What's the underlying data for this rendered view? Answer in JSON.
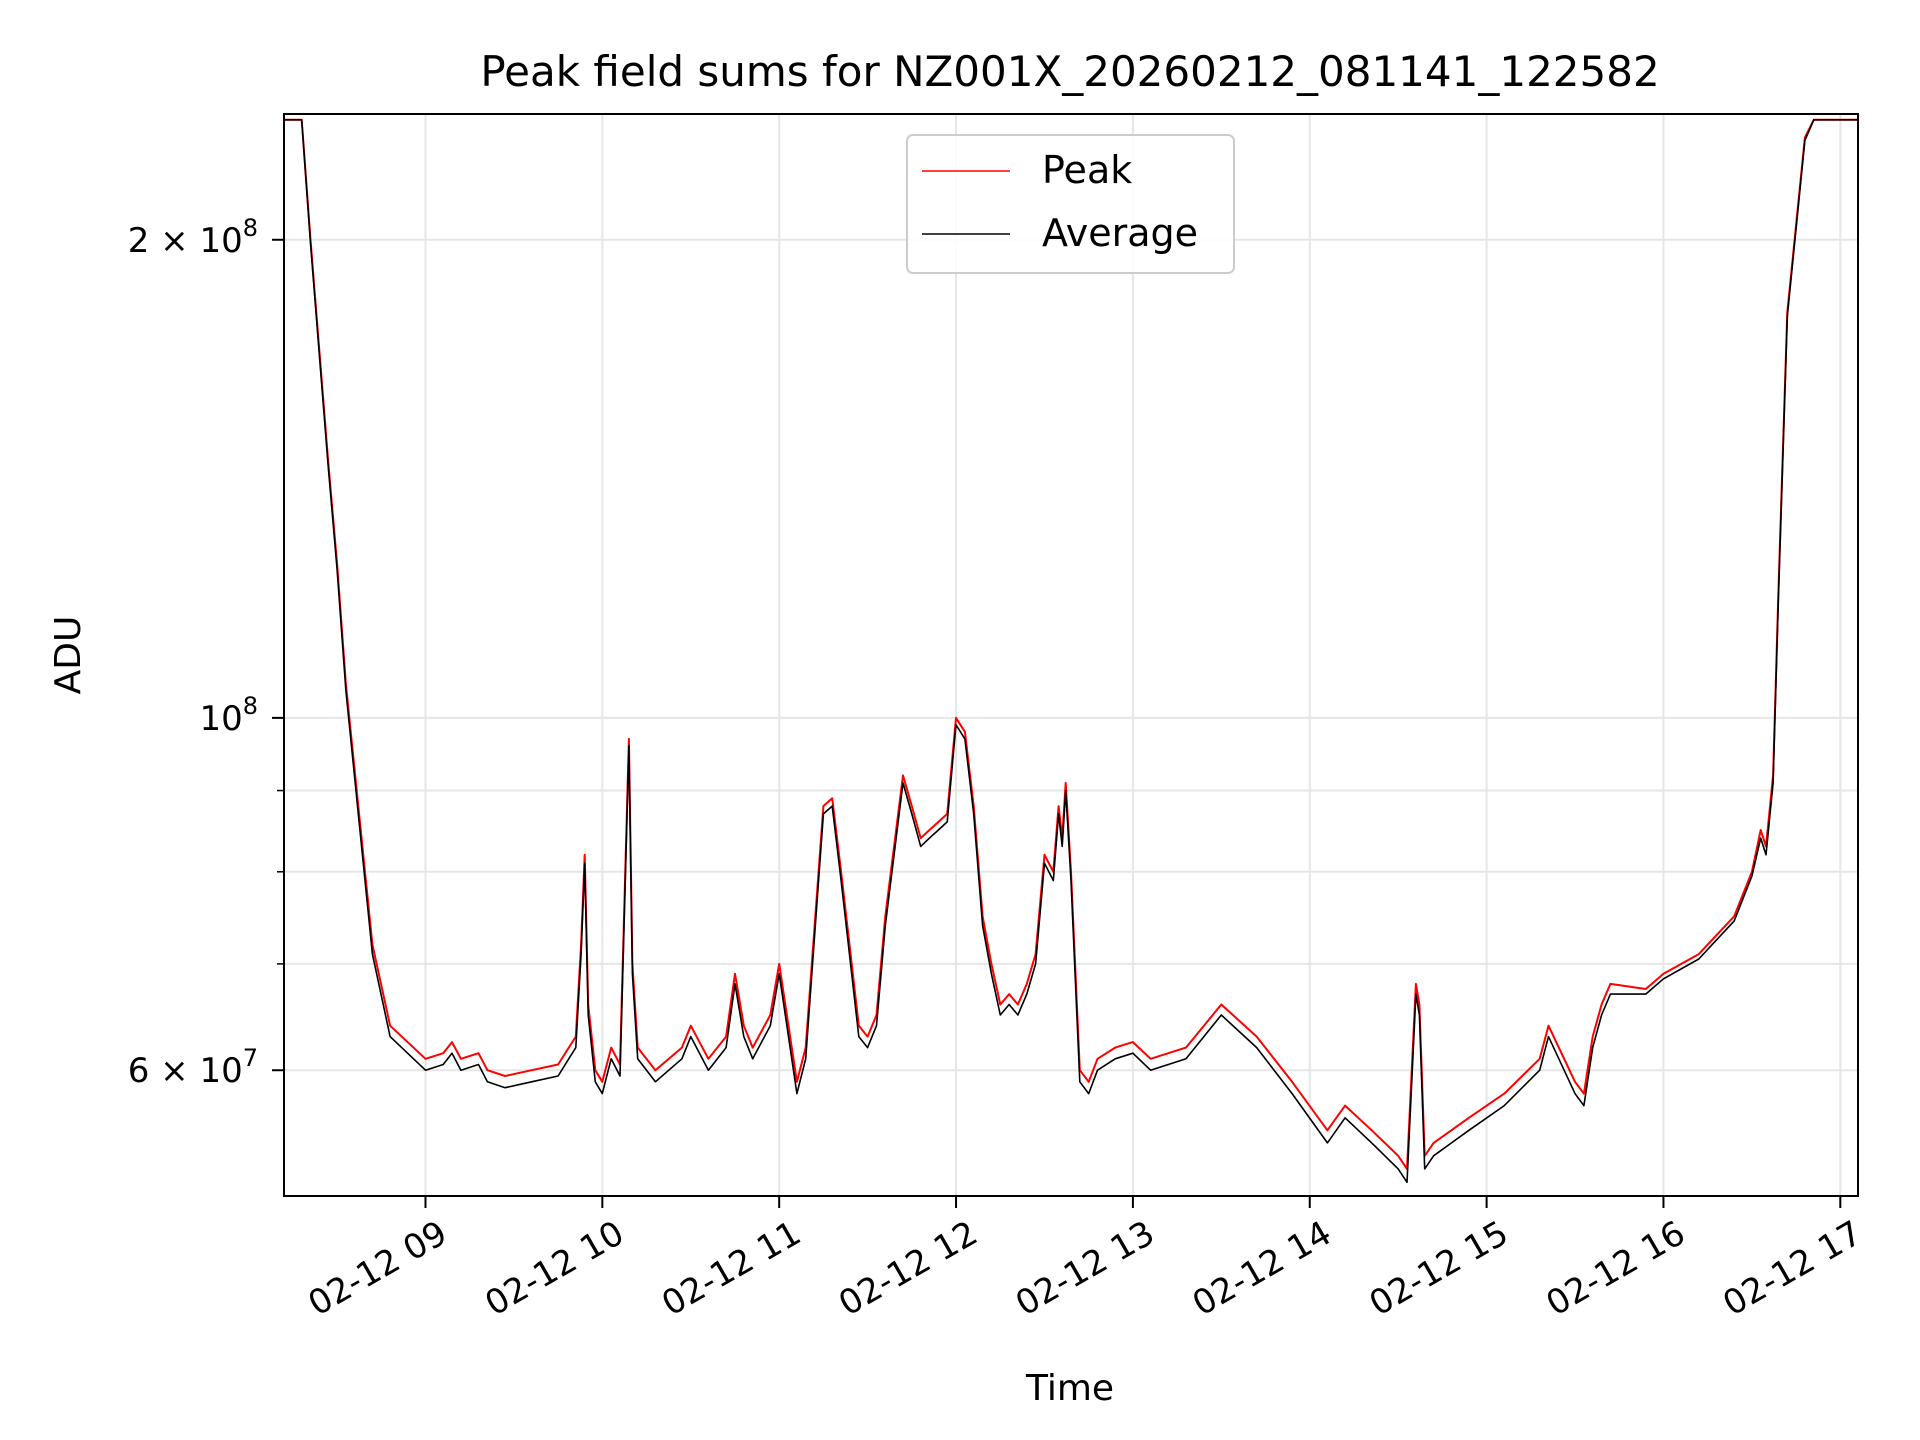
{
  "chart_data": {
    "type": "line",
    "title": "Peak field sums for NZ001X_20260212_081141_122582",
    "xlabel": "Time",
    "ylabel": "ADU",
    "yscale": "log",
    "xlim": [
      8.2,
      17.1
    ],
    "ylim": [
      50000000,
      240000000
    ],
    "grid": true,
    "legend_position": "top-center",
    "x_ticks": [
      {
        "value": 9,
        "label": "02-12 09"
      },
      {
        "value": 10,
        "label": "02-12 10"
      },
      {
        "value": 11,
        "label": "02-12 11"
      },
      {
        "value": 12,
        "label": "02-12 12"
      },
      {
        "value": 13,
        "label": "02-12 13"
      },
      {
        "value": 14,
        "label": "02-12 14"
      },
      {
        "value": 15,
        "label": "02-12 15"
      },
      {
        "value": 16,
        "label": "02-12 16"
      },
      {
        "value": 17,
        "label": "02-12 17"
      }
    ],
    "y_ticks": [
      {
        "value": 60000000,
        "base": "6 × 10",
        "exp": "7"
      },
      {
        "value": 100000000,
        "base": "10",
        "exp": "8"
      },
      {
        "value": 200000000,
        "base": "2 × 10",
        "exp": "8"
      }
    ],
    "y_minor_ticks": [
      70000000,
      80000000,
      90000000
    ],
    "x": [
      8.2,
      8.3,
      8.35,
      8.45,
      8.5,
      8.55,
      8.62,
      8.7,
      8.8,
      9.0,
      9.1,
      9.15,
      9.2,
      9.3,
      9.35,
      9.45,
      9.6,
      9.75,
      9.85,
      9.88,
      9.9,
      9.92,
      9.96,
      10.0,
      10.05,
      10.1,
      10.15,
      10.17,
      10.2,
      10.3,
      10.45,
      10.5,
      10.6,
      10.7,
      10.75,
      10.8,
      10.85,
      10.95,
      11.0,
      11.1,
      11.15,
      11.25,
      11.3,
      11.35,
      11.45,
      11.5,
      11.55,
      11.6,
      11.7,
      11.75,
      11.8,
      11.85,
      11.9,
      11.95,
      12.0,
      12.05,
      12.1,
      12.15,
      12.2,
      12.25,
      12.3,
      12.35,
      12.4,
      12.45,
      12.5,
      12.55,
      12.58,
      12.6,
      12.62,
      12.65,
      12.7,
      12.75,
      12.8,
      12.9,
      13.0,
      13.1,
      13.3,
      13.5,
      13.7,
      13.9,
      14.1,
      14.2,
      14.35,
      14.5,
      14.55,
      14.6,
      14.62,
      14.65,
      14.7,
      14.9,
      15.1,
      15.3,
      15.35,
      15.5,
      15.55,
      15.6,
      15.65,
      15.7,
      15.9,
      16.0,
      16.2,
      16.4,
      16.5,
      16.55,
      16.58,
      16.62,
      16.65,
      16.7,
      16.8,
      16.85,
      16.9,
      17.0,
      17.1
    ],
    "series": [
      {
        "name": "Peak",
        "color": "#ff0000",
        "values": [
          238000000,
          238000000,
          200000000,
          145000000,
          125000000,
          105000000,
          88000000,
          72000000,
          64000000,
          61000000,
          61500000,
          62500000,
          61000000,
          61500000,
          60000000,
          59500000,
          60000000,
          60500000,
          63000000,
          72000000,
          82000000,
          66000000,
          60000000,
          59000000,
          62000000,
          60500000,
          97000000,
          70000000,
          62000000,
          60000000,
          62000000,
          64000000,
          61000000,
          63000000,
          69000000,
          64000000,
          62000000,
          65000000,
          70000000,
          59000000,
          62000000,
          88000000,
          89000000,
          80000000,
          64000000,
          63000000,
          65000000,
          75000000,
          92000000,
          88000000,
          84000000,
          85000000,
          86000000,
          87000000,
          100000000,
          98000000,
          88000000,
          75000000,
          70000000,
          66000000,
          67000000,
          66000000,
          68000000,
          71000000,
          82000000,
          80000000,
          88000000,
          84000000,
          91000000,
          80000000,
          60000000,
          59000000,
          61000000,
          62000000,
          62500000,
          61000000,
          62000000,
          66000000,
          63000000,
          59000000,
          55000000,
          57000000,
          55000000,
          53000000,
          52000000,
          68000000,
          66000000,
          53000000,
          54000000,
          56000000,
          58000000,
          61000000,
          64000000,
          59000000,
          58000000,
          63000000,
          66000000,
          68000000,
          67500000,
          69000000,
          71000000,
          75000000,
          80000000,
          85000000,
          83000000,
          92000000,
          120000000,
          180000000,
          232000000,
          238000000,
          238000000,
          238000000,
          238000000
        ]
      },
      {
        "name": "Average",
        "color": "#000000",
        "values": [
          238000000,
          238000000,
          199000000,
          144000000,
          124000000,
          104000000,
          87000000,
          71000000,
          63000000,
          60000000,
          60500000,
          61500000,
          60000000,
          60500000,
          59000000,
          58500000,
          59000000,
          59500000,
          62000000,
          71000000,
          81000000,
          65000000,
          59000000,
          58000000,
          61000000,
          59500000,
          96000000,
          69000000,
          61000000,
          59000000,
          61000000,
          63000000,
          60000000,
          62000000,
          68000000,
          63000000,
          61000000,
          64000000,
          69000000,
          58000000,
          61000000,
          87000000,
          88000000,
          79000000,
          63000000,
          62000000,
          64000000,
          74000000,
          91000000,
          87000000,
          83000000,
          84000000,
          85000000,
          86000000,
          99000000,
          97000000,
          87000000,
          74000000,
          69000000,
          65000000,
          66000000,
          65000000,
          67000000,
          70000000,
          81000000,
          79000000,
          87000000,
          83000000,
          90000000,
          79000000,
          59000000,
          58000000,
          60000000,
          61000000,
          61500000,
          60000000,
          61000000,
          65000000,
          62000000,
          58000000,
          54000000,
          56000000,
          54000000,
          52000000,
          51000000,
          67000000,
          65000000,
          52000000,
          53000000,
          55000000,
          57000000,
          60000000,
          63000000,
          58000000,
          57000000,
          62000000,
          65000000,
          67000000,
          67000000,
          68500000,
          70500000,
          74500000,
          79500000,
          84000000,
          82000000,
          91000000,
          119000000,
          179000000,
          231000000,
          238000000,
          238000000,
          238000000,
          238000000
        ]
      }
    ]
  }
}
